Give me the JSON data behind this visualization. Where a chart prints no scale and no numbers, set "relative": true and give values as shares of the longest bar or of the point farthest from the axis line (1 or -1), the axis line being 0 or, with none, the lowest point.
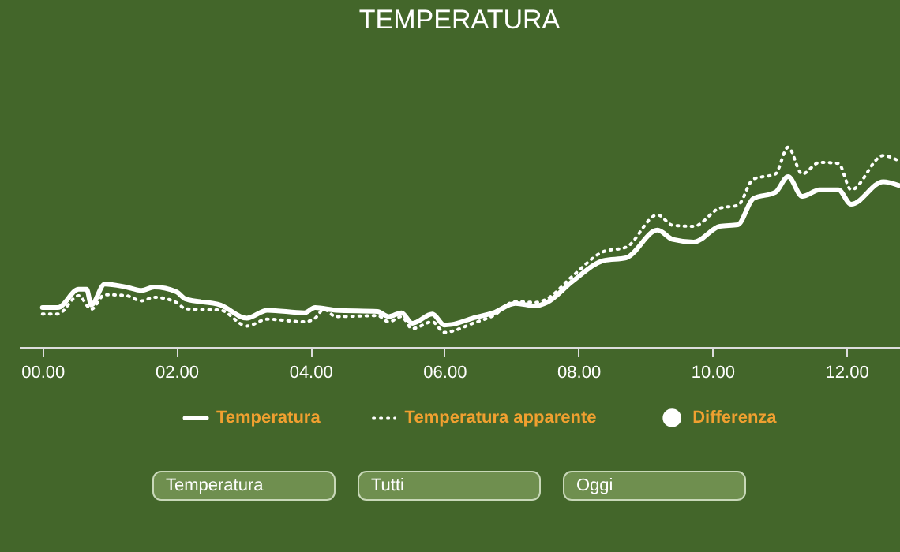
{
  "chart_data": {
    "type": "line",
    "title": "TEMPERATURA",
    "relative": true,
    "xlim": [
      -0.35,
      12.8
    ],
    "xticks": [
      {
        "value": 0,
        "label": "00.00"
      },
      {
        "value": 2,
        "label": "02.00"
      },
      {
        "value": 4,
        "label": "04.00"
      },
      {
        "value": 6,
        "label": "06.00"
      },
      {
        "value": 8,
        "label": "08.00"
      },
      {
        "value": 10,
        "label": "10.00"
      },
      {
        "value": 12,
        "label": "12.00"
      }
    ],
    "grid": false,
    "legend": "bottom",
    "series": [
      {
        "name": "Temperatura",
        "type": "line",
        "line_style": "solid",
        "color": "#ffffff",
        "x": [
          0,
          0.23,
          0.54,
          0.66,
          0.73,
          0.93,
          1.25,
          1.48,
          1.67,
          2.0,
          2.14,
          2.66,
          3.05,
          3.36,
          3.91,
          4.07,
          4.38,
          5.0,
          5.17,
          5.36,
          5.52,
          5.82,
          6.0,
          6.11,
          6.42,
          6.73,
          7.06,
          7.36,
          7.53,
          7.91,
          8.38,
          8.71,
          9.18,
          9.41,
          9.72,
          10.11,
          10.38,
          10.61,
          10.94,
          11.13,
          11.34,
          11.6,
          11.88,
          12.07,
          12.55,
          12.78
        ],
        "values": [
          0.197,
          0.197,
          0.289,
          0.289,
          0.21,
          0.315,
          0.3,
          0.283,
          0.3,
          0.276,
          0.24,
          0.21,
          0.144,
          0.184,
          0.171,
          0.197,
          0.184,
          0.178,
          0.152,
          0.171,
          0.118,
          0.165,
          0.11,
          0.113,
          0.144,
          0.171,
          0.218,
          0.205,
          0.223,
          0.328,
          0.433,
          0.446,
          0.585,
          0.538,
          0.525,
          0.604,
          0.612,
          0.743,
          0.774,
          0.853,
          0.754,
          0.787,
          0.787,
          0.714,
          0.827,
          0.809
        ]
      },
      {
        "name": "Temperatura apparente",
        "type": "line",
        "line_style": "dotted",
        "color": "#ffffff",
        "x": [
          0,
          0.23,
          0.54,
          0.73,
          0.93,
          1.25,
          1.48,
          1.67,
          2.0,
          2.14,
          2.66,
          3.05,
          3.36,
          3.91,
          4.07,
          4.2,
          4.38,
          5.0,
          5.17,
          5.36,
          5.52,
          5.82,
          6.0,
          6.11,
          6.42,
          6.73,
          7.06,
          7.36,
          7.53,
          7.91,
          8.38,
          8.71,
          9.18,
          9.41,
          9.72,
          10.11,
          10.38,
          10.61,
          10.94,
          11.13,
          11.34,
          11.6,
          11.88,
          12.07,
          12.55,
          12.78
        ],
        "values": [
          0.165,
          0.165,
          0.257,
          0.189,
          0.262,
          0.257,
          0.231,
          0.249,
          0.223,
          0.191,
          0.184,
          0.105,
          0.139,
          0.126,
          0.144,
          0.189,
          0.152,
          0.157,
          0.126,
          0.152,
          0.092,
          0.126,
          0.073,
          0.079,
          0.118,
          0.157,
          0.228,
          0.223,
          0.241,
          0.354,
          0.478,
          0.499,
          0.661,
          0.609,
          0.604,
          0.695,
          0.709,
          0.84,
          0.866,
          1.0,
          0.866,
          0.924,
          0.919,
          0.787,
          0.958,
          0.932
        ]
      },
      {
        "name": "Differenza",
        "type": "scatter",
        "color": "#ffffff"
      }
    ],
    "annotations": [
      "Temperatura",
      "Tutti",
      "Oggi"
    ]
  }
}
